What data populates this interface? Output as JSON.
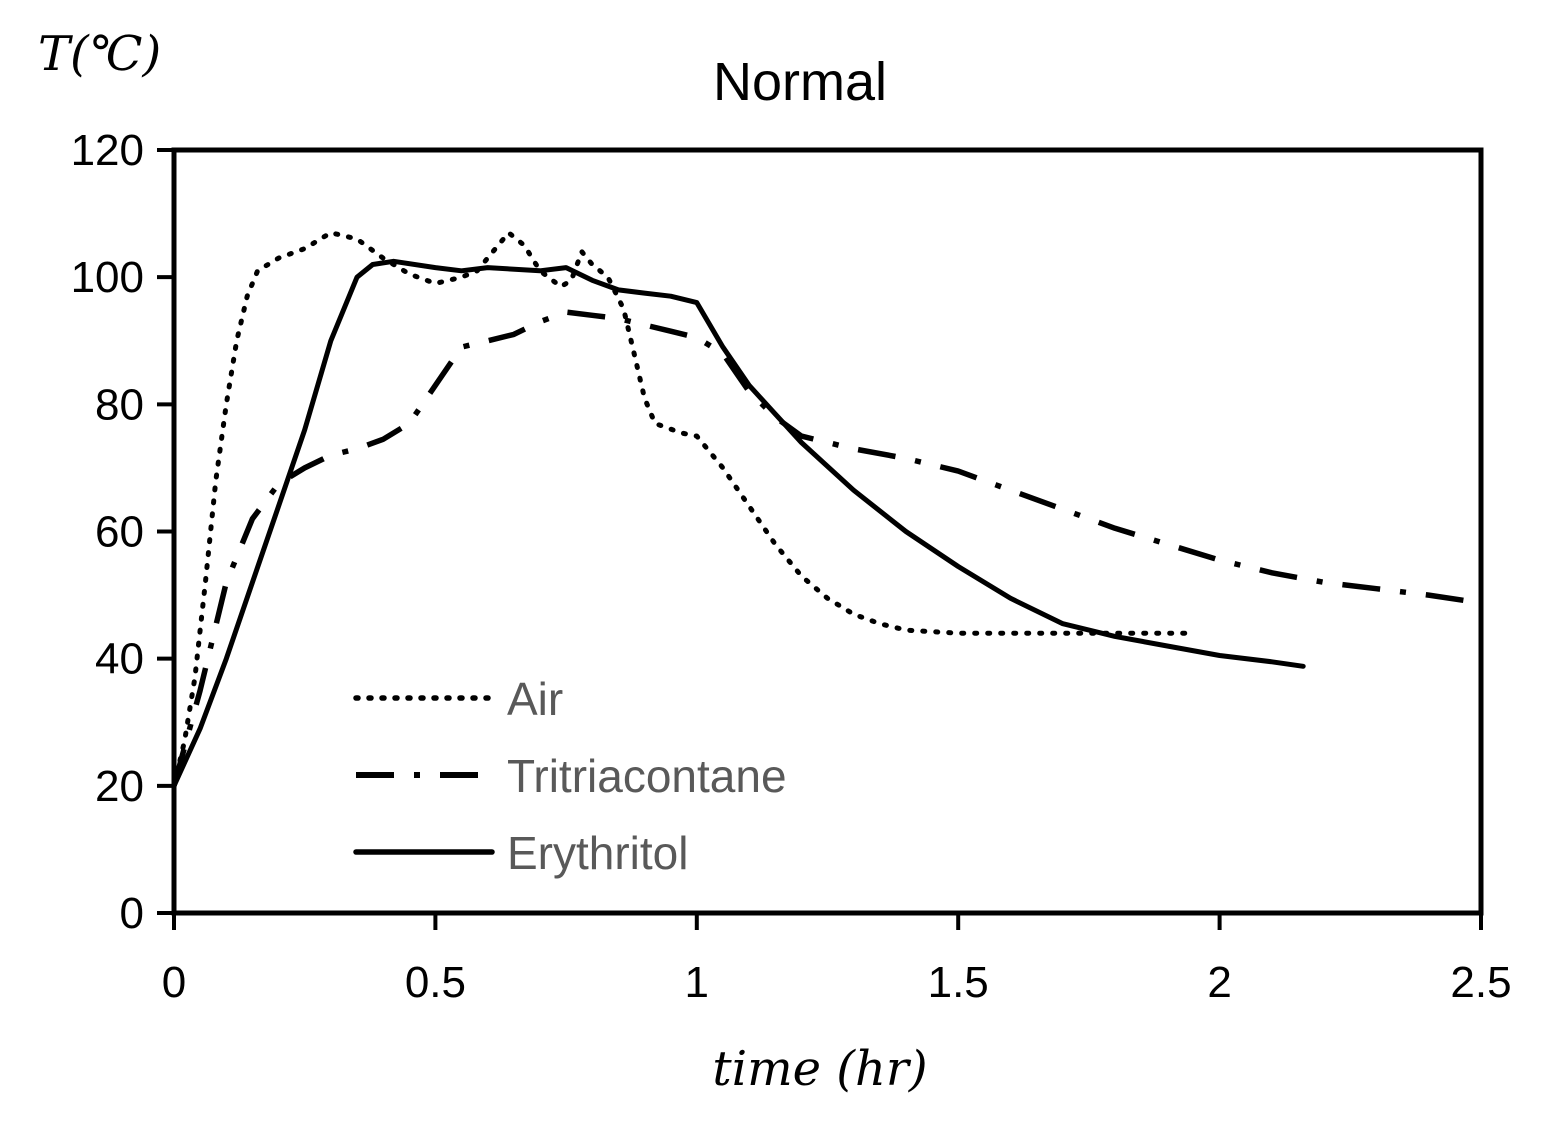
{
  "chart_data": {
    "type": "line",
    "title": "Normal",
    "xlabel": "time (hr)",
    "ylabel": "T(℃)",
    "xlim": [
      0,
      2.5
    ],
    "ylim": [
      0,
      120
    ],
    "x_ticks": [
      0,
      0.5,
      1,
      1.5,
      2,
      2.5
    ],
    "x_tick_labels": [
      "0",
      "0.5",
      "1",
      "1.5",
      "2",
      "2.5"
    ],
    "y_ticks": [
      0,
      20,
      40,
      60,
      80,
      100,
      120
    ],
    "y_tick_labels": [
      "0",
      "20",
      "40",
      "60",
      "80",
      "100",
      "120"
    ],
    "grid": false,
    "legend_position": "bottom-left",
    "series": [
      {
        "name": "Air",
        "style": "dotted",
        "color": "#000000",
        "points": [
          [
            0,
            20
          ],
          [
            0.02,
            27
          ],
          [
            0.04,
            37
          ],
          [
            0.06,
            52
          ],
          [
            0.08,
            68
          ],
          [
            0.1,
            80
          ],
          [
            0.12,
            90
          ],
          [
            0.14,
            97
          ],
          [
            0.16,
            101
          ],
          [
            0.2,
            103
          ],
          [
            0.25,
            104.5
          ],
          [
            0.3,
            107
          ],
          [
            0.35,
            106
          ],
          [
            0.4,
            103
          ],
          [
            0.45,
            100.5
          ],
          [
            0.5,
            99
          ],
          [
            0.55,
            100
          ],
          [
            0.58,
            101
          ],
          [
            0.61,
            104
          ],
          [
            0.64,
            107
          ],
          [
            0.67,
            105
          ],
          [
            0.7,
            101
          ],
          [
            0.74,
            98.5
          ],
          [
            0.76,
            99.5
          ],
          [
            0.78,
            104
          ],
          [
            0.8,
            102
          ],
          [
            0.83,
            100
          ],
          [
            0.86,
            95
          ],
          [
            0.88,
            88
          ],
          [
            0.9,
            81
          ],
          [
            0.92,
            77
          ],
          [
            0.97,
            75.5
          ],
          [
            1.0,
            75
          ],
          [
            1.05,
            70
          ],
          [
            1.1,
            64
          ],
          [
            1.15,
            58
          ],
          [
            1.2,
            53
          ],
          [
            1.25,
            49.5
          ],
          [
            1.3,
            47
          ],
          [
            1.35,
            45.5
          ],
          [
            1.4,
            44.5
          ],
          [
            1.5,
            44
          ],
          [
            1.6,
            44
          ],
          [
            1.7,
            44
          ],
          [
            1.8,
            44
          ],
          [
            1.95,
            44
          ]
        ]
      },
      {
        "name": "Tritriacontane",
        "style": "dash-dot",
        "color": "#000000",
        "points": [
          [
            0,
            20
          ],
          [
            0.05,
            35
          ],
          [
            0.1,
            52
          ],
          [
            0.15,
            62
          ],
          [
            0.2,
            67.5
          ],
          [
            0.25,
            70
          ],
          [
            0.3,
            72
          ],
          [
            0.35,
            73
          ],
          [
            0.4,
            74.5
          ],
          [
            0.45,
            77
          ],
          [
            0.5,
            83
          ],
          [
            0.55,
            89
          ],
          [
            0.6,
            90
          ],
          [
            0.65,
            91
          ],
          [
            0.7,
            93
          ],
          [
            0.75,
            94.5
          ],
          [
            0.8,
            94
          ],
          [
            0.85,
            93.5
          ],
          [
            0.9,
            92.5
          ],
          [
            0.95,
            91.5
          ],
          [
            1.0,
            90.5
          ],
          [
            1.05,
            88
          ],
          [
            1.1,
            82
          ],
          [
            1.15,
            78
          ],
          [
            1.2,
            75
          ],
          [
            1.3,
            73
          ],
          [
            1.4,
            71.5
          ],
          [
            1.5,
            69.5
          ],
          [
            1.6,
            66.5
          ],
          [
            1.7,
            63.5
          ],
          [
            1.8,
            60.5
          ],
          [
            1.9,
            58
          ],
          [
            2.0,
            55.5
          ],
          [
            2.1,
            53.5
          ],
          [
            2.2,
            52
          ],
          [
            2.3,
            51
          ],
          [
            2.4,
            50
          ],
          [
            2.48,
            49
          ]
        ]
      },
      {
        "name": "Erythritol",
        "style": "solid",
        "color": "#000000",
        "points": [
          [
            0,
            20
          ],
          [
            0.05,
            29
          ],
          [
            0.1,
            40
          ],
          [
            0.15,
            52
          ],
          [
            0.2,
            64
          ],
          [
            0.25,
            76
          ],
          [
            0.3,
            90
          ],
          [
            0.35,
            100
          ],
          [
            0.38,
            102
          ],
          [
            0.42,
            102.5
          ],
          [
            0.5,
            101.5
          ],
          [
            0.55,
            101
          ],
          [
            0.6,
            101.5
          ],
          [
            0.7,
            101
          ],
          [
            0.75,
            101.5
          ],
          [
            0.8,
            99.5
          ],
          [
            0.85,
            98
          ],
          [
            0.9,
            97.5
          ],
          [
            0.95,
            97
          ],
          [
            1.0,
            96
          ],
          [
            1.05,
            89
          ],
          [
            1.1,
            83
          ],
          [
            1.15,
            78.5
          ],
          [
            1.2,
            74
          ],
          [
            1.3,
            66.5
          ],
          [
            1.4,
            60
          ],
          [
            1.5,
            54.5
          ],
          [
            1.6,
            49.5
          ],
          [
            1.7,
            45.5
          ],
          [
            1.8,
            43.5
          ],
          [
            1.9,
            42
          ],
          [
            2.0,
            40.5
          ],
          [
            2.1,
            39.5
          ],
          [
            2.16,
            38.8
          ]
        ]
      }
    ]
  }
}
